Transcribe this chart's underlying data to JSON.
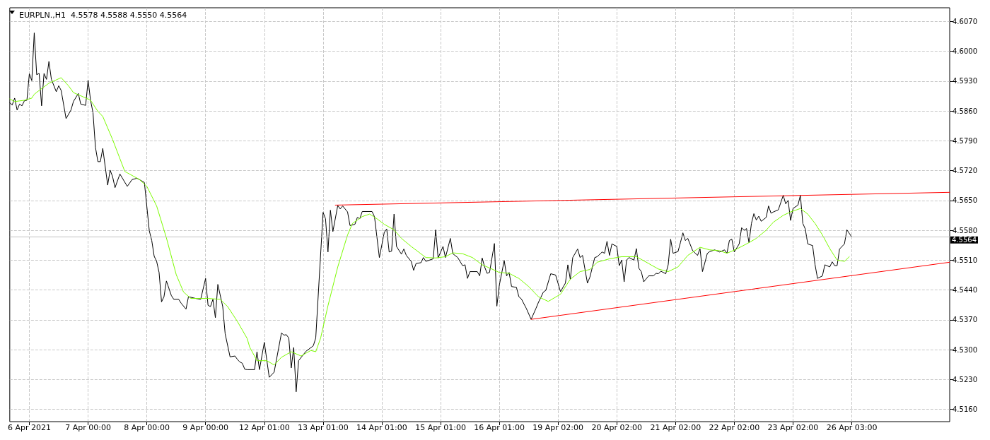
{
  "chart_data": {
    "type": "line",
    "title": "EURPLN.,H1  4.5578 4.5588 4.5550 4.5564",
    "marker": "none",
    "line_style": "solid",
    "grid": true,
    "categories": [
      null,
      null,
      null,
      null,
      null,
      null,
      null,
      null,
      "6 Apr 2021",
      null,
      null,
      null,
      null,
      null,
      null,
      null,
      null,
      null,
      null,
      null,
      null,
      null,
      null,
      null,
      null,
      null,
      null,
      null,
      null,
      null,
      null,
      null,
      "7 Apr 00:00",
      null,
      null,
      null,
      null,
      null,
      null,
      null,
      null,
      null,
      null,
      null,
      null,
      null,
      null,
      null,
      null,
      null,
      null,
      null,
      null,
      null,
      null,
      null,
      "8 Apr 00:00",
      null,
      null,
      null,
      null,
      null,
      null,
      null,
      null,
      null,
      null,
      null,
      null,
      null,
      null,
      null,
      null,
      null,
      null,
      null,
      null,
      null,
      null,
      null,
      "9 Apr 00:00",
      null,
      null,
      null,
      null,
      null,
      null,
      null,
      null,
      null,
      null,
      null,
      null,
      null,
      null,
      null,
      null,
      null,
      null,
      null,
      null,
      null,
      null,
      null,
      "12 Apr 01:00",
      null,
      null,
      null,
      null,
      null,
      null,
      null,
      null,
      null,
      null,
      null,
      null,
      null,
      null,
      null,
      null,
      null,
      null,
      null,
      null,
      null,
      null,
      null,
      "13 Apr 01:00",
      null,
      null,
      null,
      null,
      null,
      null,
      null,
      null,
      null,
      null,
      null,
      null,
      null,
      null,
      null,
      null,
      null,
      null,
      null,
      null,
      null,
      null,
      null,
      "14 Apr 01:00",
      null,
      null,
      null,
      null,
      null,
      null,
      null,
      null,
      null,
      null,
      null,
      null,
      null,
      null,
      null,
      null,
      null,
      null,
      null,
      null,
      null,
      null,
      null,
      "15 Apr 01:00",
      null,
      null,
      null,
      null,
      null,
      null,
      null,
      null,
      null,
      null,
      null,
      null,
      null,
      null,
      null,
      null,
      null,
      null,
      null,
      null,
      null,
      null,
      null,
      "16 Apr 01:00",
      null,
      null,
      null,
      null,
      null,
      null,
      null,
      null,
      null,
      null,
      null,
      null,
      null,
      null,
      null,
      null,
      null,
      null,
      null,
      null,
      null,
      null,
      null,
      "19 Apr 02:00",
      null,
      null,
      null,
      null,
      null,
      null,
      null,
      null,
      null,
      null,
      null,
      null,
      null,
      null,
      null,
      null,
      null,
      null,
      null,
      null,
      null,
      null,
      null,
      "20 Apr 02:00",
      null,
      null,
      null,
      null,
      null,
      null,
      null,
      null,
      null,
      null,
      null,
      null,
      null,
      null,
      null,
      null,
      null,
      null,
      null,
      null,
      null,
      null,
      null,
      "21 Apr 02:00",
      null,
      null,
      null,
      null,
      null,
      null,
      null,
      null,
      null,
      null,
      null,
      null,
      null,
      null,
      null,
      null,
      null,
      null,
      null,
      null,
      null,
      null,
      null,
      "22 Apr 02:00",
      null,
      null,
      null,
      null,
      null,
      null,
      null,
      null,
      null,
      null,
      null,
      null,
      null,
      null,
      null,
      null,
      null,
      null,
      null,
      null,
      null,
      null,
      null,
      "23 Apr 02:00",
      null,
      null,
      null,
      null,
      null,
      null,
      null,
      null,
      null,
      null,
      null,
      null,
      null,
      null,
      null,
      null,
      null,
      null,
      null,
      null,
      null,
      null,
      null,
      "26 Apr 03:00",
      null,
      null,
      null,
      null,
      null,
      null,
      null,
      null,
      null,
      null,
      null,
      null,
      null,
      null,
      null,
      null,
      null,
      null,
      null,
      null,
      null,
      null,
      null,
      null,
      null,
      null,
      null,
      null,
      null,
      null,
      null,
      null,
      null,
      null,
      null,
      null,
      null,
      null,
      null,
      null
    ],
    "ylim": [
      4.5131,
      4.6102
    ],
    "yticks": [
      {
        "value": 4.516,
        "label": "4.5160"
      },
      {
        "value": 4.523,
        "label": "4.5230"
      },
      {
        "value": 4.53,
        "label": "4.5300"
      },
      {
        "value": 4.537,
        "label": "4.5370"
      },
      {
        "value": 4.544,
        "label": "4.5440"
      },
      {
        "value": 4.551,
        "label": "4.5510"
      },
      {
        "value": 4.558,
        "label": "4.5580"
      },
      {
        "value": 4.565,
        "label": "4.5650"
      },
      {
        "value": 4.572,
        "label": "4.5720"
      },
      {
        "value": 4.579,
        "label": "4.5790"
      },
      {
        "value": 4.586,
        "label": "4.5860"
      },
      {
        "value": 4.593,
        "label": "4.5930"
      },
      {
        "value": 4.6,
        "label": "4.6000"
      },
      {
        "value": 4.607,
        "label": "4.6070"
      }
    ],
    "ref_lines": [
      {
        "axis": "y",
        "value": 4.5564,
        "label": "4.5564",
        "color": "#c0c0c0"
      }
    ],
    "series": [
      {
        "color": "#000000",
        "values": [
          4.5879,
          4.5874,
          4.589,
          4.5862,
          4.5876,
          4.5872,
          4.5884,
          4.5885,
          4.5947,
          4.5931,
          4.6043,
          4.5945,
          4.5948,
          4.5872,
          4.5948,
          4.5934,
          4.5976,
          4.5934,
          null,
          4.5905,
          4.5919,
          4.5908,
          null,
          4.5842,
          null,
          4.5862,
          4.5882,
          null,
          4.5901,
          4.5876,
          null,
          4.5873,
          4.5932,
          4.5885,
          4.5856,
          4.5775,
          4.5741,
          4.5741,
          4.5772,
          4.5729,
          4.5686,
          4.5721,
          4.5706,
          4.568,
          null,
          4.5712,
          null,
          null,
          4.5683,
          null,
          4.5699,
          null,
          4.5702,
          null,
          null,
          4.5692,
          null,
          4.5579,
          4.5556,
          4.5519,
          4.5507,
          4.5481,
          4.5412,
          4.5424,
          4.5461,
          null,
          4.5427,
          4.5418,
          null,
          4.5418,
          4.5409,
          null,
          4.5395,
          4.5424,
          null,
          null,
          4.542,
          null,
          4.5418,
          null,
          4.5467,
          4.5404,
          4.5401,
          4.5418,
          4.5375,
          4.5453,
          null,
          4.5401,
          4.5337,
          null,
          4.5283,
          null,
          4.5285,
          4.5277,
          4.5271,
          4.5268,
          4.5254,
          4.5253,
          null,
          null,
          4.5253,
          4.5295,
          4.5253,
          null,
          4.5317,
          null,
          4.5235,
          null,
          4.5247,
          null,
          null,
          4.5339,
          4.5334,
          4.5335,
          4.5327,
          4.5257,
          4.5305,
          4.5201,
          4.5274,
          null,
          null,
          4.5296,
          null,
          null,
          4.5309,
          4.5327,
          null,
          null,
          4.5622,
          4.5607,
          4.5529,
          4.5627,
          4.5577,
          null,
          4.5638,
          4.563,
          4.5637,
          null,
          4.5623,
          4.5591,
          null,
          4.5594,
          4.561,
          4.5607,
          4.5624,
          null,
          null,
          null,
          4.5624,
          4.5612,
          null,
          4.5516,
          null,
          4.5575,
          4.5583,
          4.5529,
          4.5531,
          4.5618,
          4.5542,
          null,
          4.5524,
          4.5536,
          4.5521,
          null,
          4.5507,
          4.5486,
          4.5502,
          null,
          4.5504,
          4.5516,
          4.5507,
          null,
          null,
          4.5513,
          4.5581,
          4.5515,
          null,
          4.5542,
          4.5516,
          null,
          4.5561,
          4.5525,
          null,
          4.5516,
          null,
          4.5497,
          4.5499,
          4.5467,
          4.5483,
          null,
          null,
          4.5483,
          4.5473,
          4.5515,
          4.5494,
          4.5479,
          4.5481,
          null,
          4.5549,
          4.5402,
          4.5451,
          null,
          4.5509,
          4.5473,
          4.5481,
          4.5448,
          null,
          4.5446,
          4.5424,
          4.5419,
          null,
          4.5397,
          null,
          4.5371,
          null,
          4.5397,
          4.5411,
          null,
          4.5435,
          4.5439,
          null,
          4.5478,
          null,
          4.5475,
          null,
          4.5436,
          null,
          4.5456,
          4.5499,
          4.5465,
          4.5516,
          null,
          4.5536,
          4.5516,
          4.5521,
          null,
          4.5456,
          4.547,
          null,
          4.5516,
          4.5518,
          null,
          4.5529,
          4.5526,
          4.5554,
          4.5521,
          4.5548,
          null,
          4.5542,
          4.5497,
          4.551,
          4.5459,
          4.551,
          4.5516,
          null,
          4.551,
          4.5537,
          4.5491,
          4.5483,
          4.5459,
          null,
          4.5473,
          null,
          4.5473,
          4.5479,
          4.5478,
          4.5484,
          null,
          4.5478,
          4.5499,
          4.5559,
          4.5526,
          null,
          4.553,
          4.5551,
          4.5574,
          4.5556,
          4.5561,
          null,
          4.5532,
          null,
          4.5521,
          4.5537,
          4.5483,
          null,
          4.5526,
          4.553,
          null,
          4.5534,
          null,
          4.5529,
          null,
          4.5534,
          4.5526,
          4.5556,
          4.5559,
          4.5529,
          null,
          4.5548,
          4.5586,
          4.558,
          4.5584,
          4.5551,
          4.5596,
          4.5619,
          4.5604,
          4.5613,
          4.5601,
          null,
          4.561,
          4.5637,
          4.562,
          4.5623,
          null,
          4.5628,
          null,
          4.5662,
          4.5642,
          4.565,
          4.5603,
          4.5631,
          null,
          4.5639,
          4.5662,
          4.5596,
          4.5583,
          4.5548,
          null,
          4.5544,
          4.5499,
          4.5467,
          null,
          4.5473,
          4.5499,
          null,
          4.5494,
          4.5506,
          4.5497,
          4.5497,
          4.5536,
          4.5542,
          4.5548,
          4.5581,
          null,
          4.5564,
          null,
          null,
          null,
          null,
          null,
          null,
          null,
          null,
          null,
          null,
          null,
          null,
          null,
          null,
          null,
          null,
          null,
          null,
          null,
          null,
          null,
          null,
          null,
          null,
          null,
          null,
          null,
          null,
          null,
          null,
          null,
          null,
          null,
          null,
          null,
          null,
          null,
          null,
          null,
          null
        ]
      },
      {
        "color": "#7cfc00",
        "values": [
          4.5888,
          null,
          4.5882,
          null,
          null,
          null,
          4.5885,
          null,
          null,
          4.589,
          4.5899,
          null,
          4.5908,
          null,
          null,
          null,
          4.5925,
          null,
          null,
          null,
          null,
          4.5938,
          null,
          null,
          4.5919,
          null,
          4.5903,
          null,
          null,
          null,
          4.5893,
          null,
          null,
          4.5885,
          null,
          null,
          4.5859,
          null,
          4.5847,
          null,
          null,
          null,
          4.5793,
          null,
          null,
          null,
          null,
          4.5718,
          null,
          null,
          null,
          null,
          null,
          4.5699,
          null,
          null,
          4.5683,
          null,
          null,
          null,
          4.5637,
          null,
          null,
          null,
          4.5562,
          null,
          null,
          null,
          4.5476,
          null,
          null,
          4.5435,
          null,
          null,
          4.542,
          null,
          null,
          null,
          null,
          null,
          null,
          4.542,
          null,
          null,
          null,
          null,
          4.5418,
          null,
          null,
          4.5401,
          null,
          null,
          null,
          4.5366,
          null,
          null,
          null,
          4.5326,
          4.5306,
          null,
          null,
          4.5274,
          null,
          null,
          null,
          4.5274,
          null,
          null,
          4.5264,
          null,
          null,
          4.5282,
          null,
          null,
          null,
          4.5295,
          null,
          null,
          null,
          4.5285,
          null,
          null,
          null,
          4.5298,
          null,
          4.5295,
          null,
          4.5327,
          null,
          null,
          4.5403,
          null,
          null,
          null,
          4.5494,
          null,
          null,
          null,
          4.5569,
          null,
          4.5596,
          null,
          null,
          null,
          4.5612,
          null,
          null,
          4.5618,
          null,
          null,
          4.5607,
          null,
          null,
          4.5594,
          null,
          null,
          null,
          4.5581,
          null,
          null,
          4.5561,
          null,
          null,
          null,
          4.5542,
          null,
          null,
          null,
          null,
          null,
          4.5516,
          null,
          null,
          null,
          4.5515,
          null,
          null,
          null,
          4.5518,
          null,
          null,
          4.5527,
          null,
          null,
          null,
          4.5525,
          null,
          null,
          null,
          4.5516,
          null,
          null,
          null,
          4.5499,
          null,
          null,
          null,
          4.5489,
          null,
          null,
          4.5481,
          null,
          null,
          null,
          4.5479,
          null,
          null,
          null,
          4.5467,
          null,
          null,
          null,
          4.5448,
          null,
          null,
          null,
          4.5424,
          null,
          null,
          null,
          4.5413,
          null,
          null,
          null,
          null,
          4.543,
          null,
          null,
          null,
          4.5465,
          null,
          null,
          null,
          4.5483,
          null,
          null,
          null,
          4.5488,
          null,
          null,
          4.5505,
          null,
          null,
          null,
          null,
          4.5513,
          null,
          null,
          null,
          null,
          4.5518,
          null,
          null,
          null,
          null,
          null,
          4.5518,
          null,
          null,
          null,
          null,
          4.5502,
          null,
          null,
          null,
          4.5489,
          null,
          null,
          null,
          4.5483,
          null,
          null,
          null,
          4.5494,
          null,
          null,
          null,
          4.5521,
          null,
          null,
          null,
          null,
          4.554,
          null,
          null,
          null,
          4.5534,
          null,
          null,
          null,
          4.5532,
          null,
          null,
          4.5526,
          null,
          null,
          null,
          4.5536,
          null,
          null,
          null,
          null,
          4.5551,
          null,
          null,
          4.5561,
          null,
          null,
          null,
          4.558,
          null,
          null,
          4.5599,
          null,
          null,
          null,
          4.5615,
          null,
          null,
          4.5623,
          null,
          null,
          null,
          4.5631,
          null,
          null,
          4.5618,
          null,
          null,
          4.5596,
          null,
          null,
          4.5569,
          null,
          null,
          4.5537,
          null,
          null,
          4.551,
          null,
          null,
          4.5507,
          null,
          4.5518,
          null,
          null,
          null,
          null,
          null,
          null,
          null,
          null,
          null,
          null,
          null,
          null,
          null,
          null,
          null,
          null,
          null,
          null,
          null,
          null,
          null,
          null,
          null,
          null,
          null,
          null,
          null,
          null,
          null,
          null,
          null,
          null,
          null,
          null,
          null,
          null,
          null,
          null,
          null,
          null,
          null
        ]
      },
      {
        "color": "#ff0000",
        "values": [
          null,
          null,
          null,
          null,
          null,
          null,
          null,
          null,
          null,
          null,
          null,
          null,
          null,
          null,
          null,
          null,
          null,
          null,
          null,
          null,
          null,
          null,
          null,
          null,
          null,
          null,
          null,
          null,
          null,
          null,
          null,
          null,
          null,
          null,
          null,
          null,
          null,
          null,
          null,
          null,
          null,
          null,
          null,
          null,
          null,
          null,
          null,
          null,
          null,
          null,
          null,
          null,
          null,
          null,
          null,
          null,
          null,
          null,
          null,
          null,
          null,
          null,
          null,
          null,
          null,
          null,
          null,
          null,
          null,
          null,
          null,
          null,
          null,
          null,
          null,
          null,
          null,
          null,
          null,
          null,
          null,
          null,
          null,
          null,
          null,
          null,
          null,
          null,
          null,
          null,
          null,
          null,
          null,
          null,
          null,
          null,
          null,
          null,
          null,
          null,
          null,
          null,
          null,
          null,
          null,
          null,
          null,
          null,
          null,
          null,
          null,
          null,
          null,
          null,
          null,
          null,
          null,
          null,
          null,
          null,
          null,
          null,
          null,
          null,
          null,
          null,
          null,
          null,
          null,
          null,
          null,
          null,
          null,
          4.5639,
          null,
          null,
          null,
          null,
          null,
          null,
          null,
          null,
          null,
          null,
          null,
          null,
          null,
          null,
          null,
          null,
          null,
          null,
          null,
          null,
          null,
          null,
          null,
          null,
          null,
          null,
          null,
          null,
          null,
          null,
          null,
          null,
          null,
          null,
          null,
          null,
          null,
          null,
          null,
          null,
          null,
          null,
          null,
          null,
          null,
          null,
          null,
          null,
          null,
          null,
          null,
          null,
          null,
          null,
          null,
          null,
          null,
          null,
          null,
          null,
          null,
          null,
          null,
          null,
          null,
          null,
          null,
          null,
          null,
          null,
          null,
          null,
          null,
          null,
          null,
          null,
          null,
          null,
          null,
          null,
          null,
          null,
          null,
          null,
          null,
          null,
          null,
          null,
          null,
          null,
          null,
          null,
          null,
          null,
          null,
          null,
          null,
          null,
          null,
          null,
          null,
          null,
          null,
          null,
          null,
          null,
          null,
          null,
          null,
          null,
          null,
          null,
          null,
          null,
          null,
          null,
          null,
          null,
          null,
          null,
          null,
          null,
          null,
          null,
          null,
          null,
          null,
          null,
          null,
          null,
          null,
          null,
          null,
          null,
          null,
          null,
          null,
          null,
          null,
          null,
          null,
          null,
          null,
          null,
          null,
          null,
          null,
          null,
          null,
          null,
          null,
          null,
          null,
          null,
          null,
          null,
          null,
          null,
          null,
          null,
          null,
          null,
          null,
          null,
          null,
          null,
          null,
          null,
          null,
          null,
          null,
          null,
          null,
          null,
          null,
          null,
          null,
          null,
          null,
          null,
          null,
          null,
          null,
          null,
          null,
          null,
          null,
          null,
          null,
          null,
          null,
          null,
          null,
          null,
          null,
          null,
          null,
          null,
          null,
          null,
          null,
          null,
          null,
          null,
          null,
          null,
          null,
          null,
          null,
          null,
          null,
          null,
          null,
          null,
          null,
          null,
          null,
          null,
          null,
          null,
          null,
          null,
          null,
          null,
          null,
          null,
          null,
          null,
          null,
          null,
          null,
          null,
          null,
          null,
          null,
          null,
          null,
          null,
          null,
          null,
          null,
          null,
          null,
          null,
          null,
          null,
          null,
          null,
          null,
          null,
          4.5669
        ]
      },
      {
        "color": "#ff0000",
        "values": [
          null,
          null,
          null,
          null,
          null,
          null,
          null,
          null,
          null,
          null,
          null,
          null,
          null,
          null,
          null,
          null,
          null,
          null,
          null,
          null,
          null,
          null,
          null,
          null,
          null,
          null,
          null,
          null,
          null,
          null,
          null,
          null,
          null,
          null,
          null,
          null,
          null,
          null,
          null,
          null,
          null,
          null,
          null,
          null,
          null,
          null,
          null,
          null,
          null,
          null,
          null,
          null,
          null,
          null,
          null,
          null,
          null,
          null,
          null,
          null,
          null,
          null,
          null,
          null,
          null,
          null,
          null,
          null,
          null,
          null,
          null,
          null,
          null,
          null,
          null,
          null,
          null,
          null,
          null,
          null,
          null,
          null,
          null,
          null,
          null,
          null,
          null,
          null,
          null,
          null,
          null,
          null,
          null,
          null,
          null,
          null,
          null,
          null,
          null,
          null,
          null,
          null,
          null,
          null,
          null,
          null,
          null,
          null,
          null,
          null,
          null,
          null,
          null,
          null,
          null,
          null,
          null,
          null,
          null,
          null,
          null,
          null,
          null,
          null,
          null,
          null,
          null,
          null,
          null,
          null,
          null,
          null,
          null,
          null,
          null,
          null,
          null,
          null,
          null,
          null,
          null,
          null,
          null,
          null,
          null,
          null,
          null,
          null,
          null,
          null,
          null,
          null,
          null,
          null,
          null,
          null,
          null,
          null,
          null,
          null,
          null,
          null,
          null,
          null,
          null,
          null,
          null,
          null,
          null,
          null,
          null,
          null,
          null,
          null,
          null,
          null,
          null,
          null,
          null,
          null,
          null,
          null,
          null,
          null,
          null,
          null,
          null,
          null,
          null,
          null,
          null,
          null,
          null,
          null,
          null,
          null,
          null,
          null,
          null,
          null,
          null,
          null,
          null,
          null,
          null,
          null,
          null,
          null,
          null,
          null,
          null,
          null,
          null,
          4.5371,
          null,
          null,
          null,
          null,
          null,
          null,
          null,
          null,
          null,
          null,
          null,
          null,
          null,
          null,
          null,
          null,
          null,
          null,
          null,
          null,
          null,
          null,
          null,
          null,
          null,
          null,
          null,
          null,
          null,
          null,
          null,
          null,
          null,
          null,
          null,
          null,
          null,
          null,
          null,
          null,
          null,
          null,
          null,
          null,
          null,
          null,
          null,
          null,
          null,
          null,
          null,
          null,
          null,
          null,
          null,
          null,
          null,
          null,
          null,
          null,
          null,
          null,
          null,
          null,
          null,
          null,
          null,
          null,
          null,
          null,
          null,
          null,
          null,
          null,
          null,
          null,
          null,
          null,
          null,
          null,
          null,
          null,
          null,
          null,
          null,
          null,
          null,
          null,
          null,
          null,
          null,
          null,
          null,
          null,
          null,
          null,
          null,
          null,
          null,
          null,
          null,
          null,
          null,
          null,
          null,
          null,
          null,
          null,
          null,
          null,
          null,
          null,
          null,
          null,
          null,
          null,
          null,
          null,
          null,
          null,
          null,
          null,
          null,
          null,
          null,
          null,
          null,
          null,
          null,
          null,
          null,
          null,
          null,
          null,
          null,
          null,
          null,
          null,
          null,
          null,
          null,
          null,
          null,
          null,
          null,
          null,
          null,
          null,
          null,
          null,
          null,
          null,
          null,
          null,
          null,
          null,
          null,
          null,
          null,
          null,
          null,
          null,
          null,
          null,
          null,
          null,
          null,
          null,
          null,
          null,
          4.5505
        ]
      }
    ]
  }
}
